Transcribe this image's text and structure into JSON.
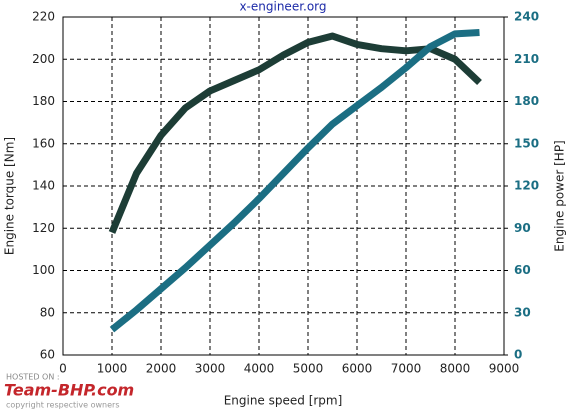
{
  "chart_data": {
    "type": "line",
    "title": "x-engineer.org",
    "x_label": "Engine speed [rpm]",
    "y_label": "Engine torque [Nm]",
    "y2_label": "Engine power [HP]",
    "x": [
      1000,
      1500,
      2000,
      2500,
      3000,
      3500,
      4000,
      4500,
      5000,
      5500,
      6000,
      6500,
      7000,
      7500,
      8000,
      8500
    ],
    "series": [
      {
        "name": "Engine torque",
        "color": "#1d3d36",
        "values": [
          118,
          146,
          164,
          177,
          185,
          190,
          195,
          202,
          208,
          211,
          207,
          205,
          204,
          205,
          200,
          189
        ]
      },
      {
        "name": "Engine power",
        "color": "#1b6e83",
        "axis": "y2",
        "values": [
          18,
          32,
          47,
          62,
          78,
          94,
          111,
          129,
          147,
          164,
          177,
          190,
          204,
          219,
          228,
          229
        ]
      }
    ],
    "xlim": [
      0,
      9000
    ],
    "xticks": [
      0,
      1000,
      2000,
      3000,
      4000,
      5000,
      6000,
      7000,
      8000,
      9000
    ],
    "ylim": [
      60,
      220
    ],
    "yticks": [
      60,
      80,
      100,
      120,
      140,
      160,
      180,
      200,
      220
    ],
    "y2lim": [
      0,
      240
    ],
    "y2ticks": [
      0,
      30,
      60,
      90,
      120,
      150,
      180,
      210,
      240
    ],
    "grid": true
  },
  "watermark": {
    "hosted": "HOSTED ON :",
    "site": "Team-BHP.com",
    "copyright": "copyright respective owners"
  }
}
